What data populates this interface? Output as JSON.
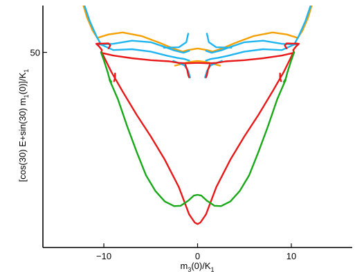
{
  "chart_data": {
    "type": "line",
    "title": "",
    "xlabel": {
      "pre": "m",
      "sub1": "3",
      "mid": "(0)/K",
      "sub2": "1"
    },
    "ylabel": {
      "pre": "[cos(30) E+sin(30) m",
      "sub1": "1",
      "mid": "(0)]/K",
      "sub2": "1"
    },
    "xlim": [
      -16.5,
      16.5
    ],
    "ylim": [
      0,
      62
    ],
    "xticks": [
      -10,
      0,
      10
    ],
    "xtick_labels": [
      "−10",
      "0",
      "10"
    ],
    "yticks": [
      50
    ],
    "ytick_labels": [
      "50"
    ],
    "grid": false,
    "legend": "none",
    "colors": {
      "orange": "#f5a000",
      "blue": "#1eb4f0",
      "red": "#e81818",
      "green": "#18a818"
    },
    "series": [
      {
        "color": "orange",
        "points": [
          [
            -12.3,
            63
          ],
          [
            -11.8,
            59
          ],
          [
            -11.2,
            55.6
          ],
          [
            -10.7,
            53.7
          ],
          [
            -9.5,
            54.6
          ],
          [
            -8,
            55.1
          ],
          [
            -6,
            54.2
          ],
          [
            -4,
            52.4
          ],
          [
            -2.5,
            50.9
          ],
          [
            -1.6,
            50.2
          ],
          [
            -1,
            50.6
          ],
          [
            0,
            51
          ],
          [
            1,
            50.6
          ],
          [
            1.6,
            50.2
          ],
          [
            2.5,
            50.9
          ],
          [
            4,
            52.4
          ],
          [
            6,
            54.2
          ],
          [
            8,
            55.1
          ],
          [
            9.5,
            54.6
          ],
          [
            10.7,
            53.7
          ],
          [
            11.2,
            55.6
          ],
          [
            11.8,
            59
          ],
          [
            12.3,
            63
          ]
        ]
      },
      {
        "color": "orange",
        "points": [
          [
            -2.4,
            46.6
          ],
          [
            -1,
            47.5
          ],
          [
            0,
            47.8
          ],
          [
            1,
            47.5
          ],
          [
            2.4,
            46.6
          ]
        ]
      },
      {
        "color": "blue",
        "points": [
          [
            -12.2,
            63
          ],
          [
            -11.5,
            58
          ],
          [
            -10.8,
            54.2
          ],
          [
            -10.3,
            52
          ],
          [
            -9,
            50.6
          ],
          [
            -7,
            50.8
          ],
          [
            -5,
            50.2
          ],
          [
            -3.2,
            49.1
          ],
          [
            -2.2,
            48.6
          ],
          [
            -1.4,
            48.3
          ],
          [
            -0.9,
            47.9
          ]
        ]
      },
      {
        "color": "blue",
        "points": [
          [
            12.2,
            63
          ],
          [
            11.5,
            58
          ],
          [
            10.8,
            54.2
          ],
          [
            10.3,
            52
          ],
          [
            9,
            50.6
          ],
          [
            7,
            50.8
          ],
          [
            5,
            50.2
          ],
          [
            3.2,
            49.1
          ],
          [
            2.2,
            48.6
          ],
          [
            1.4,
            48.3
          ],
          [
            0.9,
            47.9
          ]
        ]
      },
      {
        "color": "blue",
        "points": [
          [
            -10.6,
            52
          ],
          [
            -9,
            52.2
          ],
          [
            -7,
            53
          ],
          [
            -5,
            52.6
          ],
          [
            -3.5,
            51.4
          ],
          [
            -2.5,
            50.5
          ],
          [
            -1.5,
            49.9
          ],
          [
            -0.9,
            50.4
          ]
        ]
      },
      {
        "color": "blue",
        "points": [
          [
            10.6,
            52
          ],
          [
            9,
            52.2
          ],
          [
            7,
            53
          ],
          [
            5,
            52.6
          ],
          [
            3.5,
            51.4
          ],
          [
            2.5,
            50.5
          ],
          [
            1.5,
            49.9
          ],
          [
            0.9,
            50.4
          ]
        ]
      },
      {
        "color": "blue",
        "points": [
          [
            -2.6,
            47.8
          ],
          [
            -1.4,
            46.7
          ],
          [
            -1,
            45.2
          ],
          [
            -0.8,
            43.6
          ]
        ]
      },
      {
        "color": "blue",
        "points": [
          [
            2.6,
            47.8
          ],
          [
            1.4,
            46.7
          ],
          [
            1,
            45.2
          ],
          [
            0.8,
            43.6
          ]
        ]
      },
      {
        "color": "blue",
        "points": [
          [
            -3.6,
            51.2
          ],
          [
            -2,
            51.3
          ],
          [
            -1.2,
            52.6
          ],
          [
            -1,
            54.8
          ]
        ]
      },
      {
        "color": "blue",
        "points": [
          [
            3.6,
            51.2
          ],
          [
            2,
            51.3
          ],
          [
            1.2,
            52.6
          ],
          [
            1,
            54.8
          ]
        ]
      },
      {
        "color": "red",
        "points": [
          [
            -10.4,
            52.3
          ],
          [
            -10.8,
            52.2
          ],
          [
            -10.5,
            51.5
          ],
          [
            -10.2,
            50.6
          ],
          [
            -10.3,
            49.9
          ],
          [
            -9,
            49.2
          ],
          [
            -7,
            48.5
          ],
          [
            -5,
            48
          ],
          [
            -3,
            47.7
          ],
          [
            -2,
            47.3
          ],
          [
            -1.2,
            47.2
          ]
        ]
      },
      {
        "color": "red",
        "points": [
          [
            10.4,
            52.3
          ],
          [
            10.8,
            52.2
          ],
          [
            10.5,
            51.5
          ],
          [
            10.2,
            50.6
          ],
          [
            10.3,
            49.9
          ],
          [
            9,
            49.2
          ],
          [
            7,
            48.5
          ],
          [
            5,
            48
          ],
          [
            3,
            47.7
          ],
          [
            2,
            47.3
          ],
          [
            1.2,
            47.2
          ]
        ]
      },
      {
        "color": "red",
        "points": [
          [
            -10.8,
            52.2
          ],
          [
            -9.5,
            52.3
          ],
          [
            -9.3,
            51.8
          ],
          [
            -9.5,
            51
          ]
        ]
      },
      {
        "color": "red",
        "points": [
          [
            10.8,
            52.2
          ],
          [
            9.5,
            52.3
          ],
          [
            9.3,
            51.8
          ],
          [
            9.5,
            51
          ]
        ]
      },
      {
        "color": "red",
        "points": [
          [
            -1.3,
            46.8
          ],
          [
            -1.1,
            45.5
          ],
          [
            -1,
            44.2
          ],
          [
            -0.9,
            43.6
          ]
        ]
      },
      {
        "color": "red",
        "points": [
          [
            1.3,
            46.8
          ],
          [
            1.1,
            45.5
          ],
          [
            1,
            44.2
          ],
          [
            0.9,
            43.6
          ]
        ]
      },
      {
        "color": "red",
        "points": [
          [
            -1.2,
            47.2
          ],
          [
            0,
            47.3
          ],
          [
            1.2,
            47.2
          ]
        ]
      },
      {
        "color": "red",
        "points": [
          [
            -10.2,
            49.9
          ],
          [
            -9.2,
            45
          ],
          [
            -8,
            40
          ],
          [
            -6.5,
            34
          ],
          [
            -5,
            28.5
          ],
          [
            -3.5,
            22.5
          ],
          [
            -2,
            15.5
          ],
          [
            -0.9,
            8.5
          ],
          [
            -0.3,
            6.4
          ],
          [
            0,
            6
          ],
          [
            0.3,
            6.4
          ],
          [
            0.9,
            8.5
          ],
          [
            2,
            15.5
          ],
          [
            3.5,
            22.5
          ],
          [
            5,
            28.5
          ],
          [
            6.5,
            34
          ],
          [
            8,
            40
          ],
          [
            9.2,
            45
          ],
          [
            10.2,
            49.9
          ]
        ]
      },
      {
        "color": "red",
        "points": [
          [
            -8.9,
            42.6
          ],
          [
            -8.8,
            43.5
          ],
          [
            -8.8,
            44.6
          ]
        ]
      },
      {
        "color": "red",
        "points": [
          [
            8.9,
            42.6
          ],
          [
            8.8,
            43.5
          ],
          [
            8.8,
            44.6
          ]
        ]
      },
      {
        "color": "green",
        "points": [
          [
            -10.3,
            50
          ],
          [
            -10,
            48
          ],
          [
            -9.6,
            45
          ],
          [
            -9.4,
            43.2
          ],
          [
            -9.2,
            42.4
          ]
        ]
      },
      {
        "color": "green",
        "points": [
          [
            10.3,
            50
          ],
          [
            10,
            48
          ],
          [
            9.6,
            45
          ],
          [
            9.4,
            43.2
          ],
          [
            9.2,
            42.4
          ]
        ]
      },
      {
        "color": "green",
        "points": [
          [
            -9.4,
            43
          ],
          [
            -8.5,
            38
          ],
          [
            -7.5,
            31
          ],
          [
            -6.5,
            24.5
          ],
          [
            -5.5,
            18.5
          ],
          [
            -4.5,
            14.5
          ],
          [
            -3.5,
            11.8
          ],
          [
            -2.5,
            10.6
          ],
          [
            -1.8,
            10.7
          ],
          [
            -1,
            12
          ],
          [
            -0.4,
            13.3
          ],
          [
            0,
            13.5
          ],
          [
            0.4,
            13.3
          ],
          [
            1,
            12
          ],
          [
            1.8,
            10.7
          ],
          [
            2.5,
            10.6
          ],
          [
            3.5,
            11.8
          ],
          [
            4.5,
            14.5
          ],
          [
            5.5,
            18.5
          ],
          [
            6.5,
            24.5
          ],
          [
            7.5,
            31
          ],
          [
            8.5,
            38
          ],
          [
            9.4,
            43
          ]
        ]
      }
    ]
  }
}
